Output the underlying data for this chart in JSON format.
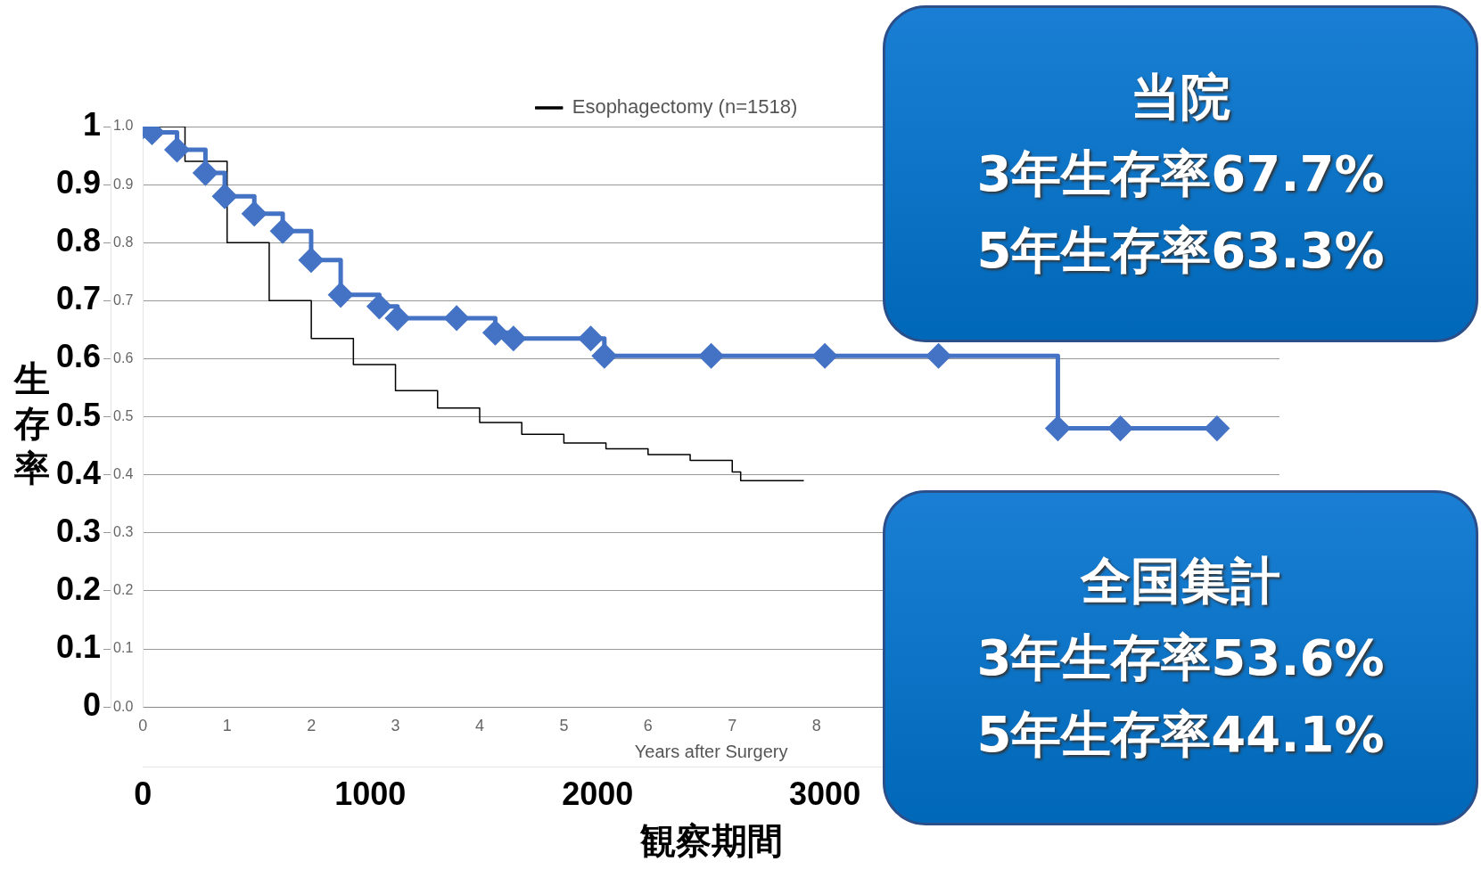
{
  "chart_data": {
    "type": "step",
    "xlabel": "観察期間",
    "ylabel": "生存率",
    "x2label": "Years after Surgery",
    "xlim": [
      0,
      5000
    ],
    "xticks": [
      0,
      1000,
      2000,
      3000
    ],
    "x2lim": [
      0,
      13.5
    ],
    "x2ticks": [
      0,
      1,
      2,
      3,
      4,
      5,
      6,
      7,
      8
    ],
    "ylim": [
      0,
      1
    ],
    "yticks": [
      0,
      0.1,
      0.2,
      0.3,
      0.4,
      0.5,
      0.6,
      0.7,
      0.8,
      0.9,
      1
    ],
    "y2lim": [
      0,
      1
    ],
    "y2ticks": [
      {
        "value": 0,
        "label": "0.0"
      },
      {
        "value": 0.1,
        "label": "0.1"
      },
      {
        "value": 0.2,
        "label": "0.2"
      },
      {
        "value": 0.3,
        "label": "0.3"
      },
      {
        "value": 0.4,
        "label": "0.4"
      },
      {
        "value": 0.5,
        "label": "0.5"
      },
      {
        "value": 0.6,
        "label": "0.6"
      },
      {
        "value": 0.7,
        "label": "0.7"
      },
      {
        "value": 0.8,
        "label": "0.8"
      },
      {
        "value": 0.9,
        "label": "0.9"
      },
      {
        "value": 1,
        "label": "1.0"
      }
    ],
    "grid": "y",
    "legend": "top",
    "series": [
      {
        "color": "#4472c4",
        "marker": "diamond",
        "x": [
          0,
          40,
          150,
          275,
          360,
          490,
          615,
          740,
          870,
          1040,
          1120,
          1380,
          1550,
          1630,
          1970,
          2030,
          2500,
          3000,
          3500,
          4025,
          4300,
          4725
        ],
        "values": [
          1,
          0.99,
          0.96,
          0.92,
          0.88,
          0.85,
          0.82,
          0.77,
          0.71,
          0.69,
          0.67,
          0.67,
          0.645,
          0.635,
          0.635,
          0.605,
          0.605,
          0.605,
          0.605,
          0.48,
          0.48,
          0.48
        ]
      },
      {
        "name": "Esophagectomy (n=1518)",
        "color": "#000000",
        "marker": "none",
        "axis": "x2",
        "x": [
          0,
          0.5,
          1,
          1.5,
          2,
          2.5,
          3,
          3.5,
          4,
          4.5,
          5,
          5.5,
          6,
          6.5,
          7,
          7.1,
          7.85
        ],
        "values": [
          1,
          0.94,
          0.8,
          0.7,
          0.635,
          0.59,
          0.545,
          0.515,
          0.49,
          0.47,
          0.455,
          0.445,
          0.435,
          0.425,
          0.405,
          0.39,
          0.39
        ]
      }
    ],
    "annotations": [
      "当院\n3年生存率67.7%\n5年生存率63.3%",
      "全国集計\n3年生存率53.6%\n5年生存率44.1%"
    ]
  }
}
